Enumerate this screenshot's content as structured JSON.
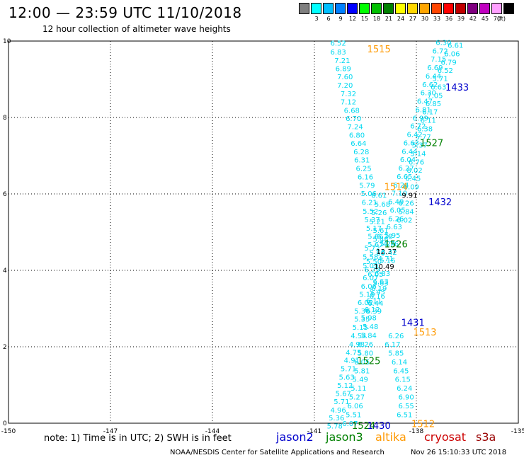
{
  "header": {
    "title": "12:00 — 23:59 UTC 11/10/2018",
    "subtitle": "12 hour collection of altimeter wave heights"
  },
  "scale": {
    "unit": "(ft)",
    "items": [
      {
        "label": "",
        "color": "#7f7f7f"
      },
      {
        "label": "3",
        "color": "#00ffff"
      },
      {
        "label": "6",
        "color": "#00bfff"
      },
      {
        "label": "9",
        "color": "#0080ff"
      },
      {
        "label": "12",
        "color": "#0000ff"
      },
      {
        "label": "15",
        "color": "#00ff00"
      },
      {
        "label": "18",
        "color": "#00c000"
      },
      {
        "label": "21",
        "color": "#008000"
      },
      {
        "label": "24",
        "color": "#ffff00"
      },
      {
        "label": "27",
        "color": "#ffd700"
      },
      {
        "label": "30",
        "color": "#ffa500"
      },
      {
        "label": "33",
        "color": "#ff4500"
      },
      {
        "label": "36",
        "color": "#ff0000"
      },
      {
        "label": "39",
        "color": "#c00000"
      },
      {
        "label": "42",
        "color": "#800080"
      },
      {
        "label": "45",
        "color": "#c000c0"
      },
      {
        "label": "70",
        "color": "#ffa0ff"
      },
      {
        "label": "",
        "color": "#000000"
      }
    ]
  },
  "chart_data": {
    "type": "scatter",
    "xlim": [
      -150,
      -135
    ],
    "ylim": [
      0,
      10
    ],
    "x_ticks": [
      "-150",
      "-147",
      "-144",
      "-141",
      "-138",
      "-135"
    ],
    "y_ticks": [
      "0",
      "2",
      "4",
      "6",
      "8",
      "10"
    ],
    "grid": true,
    "value_color": "#00d8f0",
    "track_label_colors": {
      "jason2": "#0000cc",
      "jason3": "#008000",
      "altika": "#ff9900"
    },
    "tracks": [
      {
        "points": [
          {
            "x": -140.3,
            "y": 9.88,
            "v": "6.52"
          },
          {
            "x": -140.3,
            "y": 9.65,
            "v": "6.83"
          },
          {
            "x": -140.18,
            "y": 9.43,
            "v": "7.21"
          },
          {
            "x": -140.15,
            "y": 9.21,
            "v": "6.89"
          },
          {
            "x": -140.1,
            "y": 9.0,
            "v": "7.60"
          },
          {
            "x": -140.1,
            "y": 8.78,
            "v": "7.20"
          },
          {
            "x": -140.0,
            "y": 8.56,
            "v": "7.32"
          },
          {
            "x": -140.0,
            "y": 8.34,
            "v": "7.12"
          },
          {
            "x": -139.9,
            "y": 8.12,
            "v": "6.68"
          },
          {
            "x": -139.85,
            "y": 7.91,
            "v": "6.70"
          },
          {
            "x": -139.8,
            "y": 7.69,
            "v": "7.24"
          },
          {
            "x": -139.75,
            "y": 7.47,
            "v": "6.80"
          },
          {
            "x": -139.7,
            "y": 7.26,
            "v": "6.64"
          },
          {
            "x": -139.62,
            "y": 7.04,
            "v": "6.28"
          },
          {
            "x": -139.6,
            "y": 6.82,
            "v": "6.31"
          },
          {
            "x": -139.55,
            "y": 6.6,
            "v": "6.25"
          },
          {
            "x": -139.5,
            "y": 6.38,
            "v": "6.16"
          },
          {
            "x": -139.45,
            "y": 6.16,
            "v": "5.79"
          },
          {
            "x": -139.4,
            "y": 5.94,
            "v": "5.06"
          },
          {
            "x": -139.38,
            "y": 5.71,
            "v": "6.21"
          },
          {
            "x": -139.35,
            "y": 5.48,
            "v": "5.52"
          },
          {
            "x": -139.3,
            "y": 5.26,
            "v": "5.37"
          },
          {
            "x": -139.25,
            "y": 5.04,
            "v": "5.17"
          },
          {
            "x": -139.2,
            "y": 4.82,
            "v": "5.66"
          },
          {
            "x": -139.2,
            "y": 4.61,
            "v": "5.67"
          },
          {
            "x": -139.15,
            "y": 4.39,
            "v": "5.60"
          },
          {
            "x": -139.25,
            "y": 4.17,
            "v": "5.50"
          },
          {
            "x": -139.3,
            "y": 3.95,
            "v": "6.29"
          },
          {
            "x": -139.35,
            "y": 3.74,
            "v": "6.07"
          },
          {
            "x": -139.4,
            "y": 3.52,
            "v": "6.06"
          },
          {
            "x": -139.45,
            "y": 3.31,
            "v": "5.19"
          },
          {
            "x": -139.5,
            "y": 3.09,
            "v": "6.02"
          },
          {
            "x": -139.6,
            "y": 2.87,
            "v": "5.30"
          },
          {
            "x": -139.6,
            "y": 2.66,
            "v": "5.35"
          },
          {
            "x": -139.65,
            "y": 2.44,
            "v": "5.15"
          },
          {
            "x": -139.7,
            "y": 2.22,
            "v": "4.54"
          },
          {
            "x": -139.75,
            "y": 2.0,
            "v": "4.98"
          },
          {
            "x": -139.85,
            "y": 1.79,
            "v": "4.75"
          },
          {
            "x": -139.9,
            "y": 1.58,
            "v": "4.91"
          },
          {
            "x": -140.0,
            "y": 1.36,
            "v": "5.71"
          },
          {
            "x": -140.05,
            "y": 1.14,
            "v": "5.63"
          },
          {
            "x": -140.1,
            "y": 0.93,
            "v": "5.12"
          },
          {
            "x": -140.15,
            "y": 0.71,
            "v": "5.67"
          },
          {
            "x": -140.2,
            "y": 0.5,
            "v": "5.71"
          },
          {
            "x": -140.3,
            "y": 0.28,
            "v": "4.96"
          },
          {
            "x": -140.35,
            "y": 0.07,
            "v": "5.36"
          },
          {
            "x": -140.4,
            "y": -0.14,
            "v": "5.78"
          }
        ],
        "labels": [
          {
            "x": -139.1,
            "y": 9.7,
            "text": "1515",
            "sat": "altika"
          },
          {
            "x": -138.6,
            "y": 6.1,
            "text": "1514",
            "sat": "altika"
          },
          {
            "x": -139.55,
            "y": -0.15,
            "text": "1524",
            "sat": "jason3"
          }
        ]
      },
      {
        "points": [
          {
            "x": -139.1,
            "y": 5.9,
            "v": "6.61"
          },
          {
            "x": -139.0,
            "y": 5.67,
            "v": "5.68"
          },
          {
            "x": -139.1,
            "y": 5.44,
            "v": "5.26"
          },
          {
            "x": -139.15,
            "y": 5.21,
            "v": "5.21"
          },
          {
            "x": -139.05,
            "y": 4.98,
            "v": "5.61"
          },
          {
            "x": -139.05,
            "y": 4.75,
            "v": "5.48"
          },
          {
            "x": -139.3,
            "y": 4.52,
            "v": "5.72"
          },
          {
            "x": -139.35,
            "y": 4.29,
            "v": "5.58"
          },
          {
            "x": -139.35,
            "y": 4.06,
            "v": "5.09"
          },
          {
            "x": -139.2,
            "y": 3.83,
            "v": "6.05"
          },
          {
            "x": -139.05,
            "y": 3.6,
            "v": "5.63"
          },
          {
            "x": -139.15,
            "y": 3.37,
            "v": "5.45"
          },
          {
            "x": -139.25,
            "y": 3.14,
            "v": "6.11"
          },
          {
            "x": -139.3,
            "y": 2.91,
            "v": "6.12"
          },
          {
            "x": -139.4,
            "y": 2.69,
            "v": "5.98"
          },
          {
            "x": -139.35,
            "y": 2.46,
            "v": "5.48"
          },
          {
            "x": -139.4,
            "y": 2.23,
            "v": "5.84"
          },
          {
            "x": -139.5,
            "y": 2.0,
            "v": "6.26"
          },
          {
            "x": -139.5,
            "y": 1.77,
            "v": "5.80"
          },
          {
            "x": -139.6,
            "y": 1.54,
            "v": "6.05"
          },
          {
            "x": -139.6,
            "y": 1.31,
            "v": "5.81"
          },
          {
            "x": -139.65,
            "y": 1.08,
            "v": "5.49"
          },
          {
            "x": -139.7,
            "y": 0.85,
            "v": "5.11"
          },
          {
            "x": -139.75,
            "y": 0.62,
            "v": "5.27"
          },
          {
            "x": -139.8,
            "y": 0.39,
            "v": "6.06"
          },
          {
            "x": -139.85,
            "y": 0.16,
            "v": "5.51"
          },
          {
            "x": -139.95,
            "y": -0.07,
            "v": "6.07"
          }
        ],
        "labels": [
          {
            "x": -138.6,
            "y": 4.6,
            "text": "1526",
            "sat": "jason3"
          },
          {
            "x": -139.4,
            "y": 1.55,
            "text": "1525",
            "sat": "jason3"
          }
        ]
      },
      {
        "points": [
          {
            "x": -138.93,
            "y": 4.82,
            "v": "6.28"
          },
          {
            "x": -138.85,
            "y": 4.63,
            "v": "5.24"
          },
          {
            "x": -138.88,
            "y": 4.43,
            "v": "12.37"
          },
          {
            "x": -138.9,
            "y": 4.24,
            "v": "4.71"
          },
          {
            "x": -138.95,
            "y": 4.04,
            "v": "10.49"
          },
          {
            "x": -139.0,
            "y": 3.85,
            "v": "6.83"
          },
          {
            "x": -139.05,
            "y": 3.65,
            "v": "6.63"
          },
          {
            "x": -139.1,
            "y": 3.46,
            "v": "6.19"
          },
          {
            "x": -139.15,
            "y": 3.26,
            "v": "6.16"
          },
          {
            "x": -139.2,
            "y": 3.07,
            "v": "6.44"
          },
          {
            "x": -139.25,
            "y": 2.87,
            "v": "6.39"
          }
        ],
        "labels": [
          {
            "x": -138.1,
            "y": 2.55,
            "text": "1431",
            "sat": "jason2"
          },
          {
            "x": -137.75,
            "y": 2.3,
            "text": "1513",
            "sat": "altika"
          }
        ]
      },
      {
        "points": [
          {
            "x": -137.2,
            "y": 9.9,
            "v": "6.30"
          },
          {
            "x": -137.3,
            "y": 9.68,
            "v": "6.72"
          },
          {
            "x": -137.35,
            "y": 9.46,
            "v": "7.15"
          },
          {
            "x": -137.45,
            "y": 9.24,
            "v": "6.69"
          },
          {
            "x": -137.5,
            "y": 9.02,
            "v": "6.44"
          },
          {
            "x": -137.6,
            "y": 8.8,
            "v": "6.62"
          },
          {
            "x": -137.65,
            "y": 8.58,
            "v": "6.30"
          },
          {
            "x": -137.75,
            "y": 8.36,
            "v": "6.47"
          },
          {
            "x": -137.8,
            "y": 8.14,
            "v": "6.81"
          },
          {
            "x": -137.88,
            "y": 7.92,
            "v": "6.99"
          },
          {
            "x": -137.95,
            "y": 7.71,
            "v": "6.72"
          },
          {
            "x": -138.05,
            "y": 7.49,
            "v": "6.42"
          },
          {
            "x": -138.15,
            "y": 7.27,
            "v": "6.63"
          },
          {
            "x": -138.2,
            "y": 7.05,
            "v": "6.44"
          },
          {
            "x": -138.25,
            "y": 6.83,
            "v": "6.04"
          },
          {
            "x": -138.3,
            "y": 6.61,
            "v": "6.27"
          },
          {
            "x": -138.35,
            "y": 6.39,
            "v": "6.65"
          },
          {
            "x": -138.45,
            "y": 6.17,
            "v": "6.24"
          },
          {
            "x": -138.5,
            "y": 5.95,
            "v": "7.10"
          },
          {
            "x": -138.6,
            "y": 5.73,
            "v": "6.49"
          },
          {
            "x": -138.55,
            "y": 5.51,
            "v": "6.05"
          },
          {
            "x": -138.6,
            "y": 5.29,
            "v": "6.26"
          },
          {
            "x": -138.65,
            "y": 5.07,
            "v": "6.63"
          },
          {
            "x": -138.7,
            "y": 4.85,
            "v": "5.95"
          },
          {
            "x": -138.75,
            "y": 4.63,
            "v": "4.76"
          },
          {
            "x": -138.8,
            "y": 4.41,
            "v": "5.42"
          },
          {
            "x": -138.85,
            "y": 4.19,
            "v": "5.16"
          }
        ],
        "labels": [
          {
            "x": -136.8,
            "y": 8.7,
            "text": "1433",
            "sat": "jason2"
          },
          {
            "x": -137.55,
            "y": 7.25,
            "text": "1527",
            "sat": "jason3"
          },
          {
            "x": -137.3,
            "y": 5.7,
            "text": "1432",
            "sat": "jason2"
          }
        ]
      },
      {
        "points": [
          {
            "x": -136.85,
            "y": 9.82,
            "v": "6.61"
          },
          {
            "x": -136.95,
            "y": 9.6,
            "v": "6.06"
          },
          {
            "x": -137.05,
            "y": 9.38,
            "v": "6.79"
          },
          {
            "x": -137.15,
            "y": 9.17,
            "v": "6.52"
          },
          {
            "x": -137.3,
            "y": 8.95,
            "v": "5.71"
          },
          {
            "x": -137.35,
            "y": 8.73,
            "v": "6.63"
          },
          {
            "x": -137.45,
            "y": 8.51,
            "v": "7.05"
          },
          {
            "x": -137.5,
            "y": 8.3,
            "v": "6.85"
          },
          {
            "x": -137.6,
            "y": 8.08,
            "v": "6.17"
          },
          {
            "x": -137.65,
            "y": 7.86,
            "v": "6.11"
          },
          {
            "x": -137.75,
            "y": 7.64,
            "v": "6.38"
          },
          {
            "x": -137.8,
            "y": 7.43,
            "v": "5.77"
          },
          {
            "x": -137.9,
            "y": 7.21,
            "v": "5.37"
          },
          {
            "x": -137.95,
            "y": 6.99,
            "v": "5.14"
          },
          {
            "x": -138.0,
            "y": 6.77,
            "v": "6.76"
          },
          {
            "x": -138.05,
            "y": 6.56,
            "v": "8.02"
          },
          {
            "x": -138.1,
            "y": 6.34,
            "v": "6.45"
          },
          {
            "x": -138.15,
            "y": 6.12,
            "v": "6.09"
          },
          {
            "x": -138.2,
            "y": 5.9,
            "v": "9.91"
          },
          {
            "x": -138.3,
            "y": 5.69,
            "v": "6.26"
          },
          {
            "x": -138.3,
            "y": 5.47,
            "v": "5.84"
          },
          {
            "x": -138.35,
            "y": 5.25,
            "v": "6.02"
          }
        ],
        "labels": []
      },
      {
        "points": [
          {
            "x": -138.6,
            "y": 2.22,
            "v": "6.26"
          },
          {
            "x": -138.7,
            "y": 2.0,
            "v": "6.17"
          },
          {
            "x": -138.6,
            "y": 1.77,
            "v": "5.85"
          },
          {
            "x": -138.5,
            "y": 1.54,
            "v": "6.14"
          },
          {
            "x": -138.45,
            "y": 1.31,
            "v": "6.45"
          },
          {
            "x": -138.4,
            "y": 1.08,
            "v": "6.15"
          },
          {
            "x": -138.35,
            "y": 0.85,
            "v": "6.24"
          },
          {
            "x": -138.3,
            "y": 0.62,
            "v": "6.90"
          },
          {
            "x": -138.3,
            "y": 0.39,
            "v": "6.55"
          },
          {
            "x": -138.35,
            "y": 0.16,
            "v": "6.51"
          }
        ],
        "labels": [
          {
            "x": -137.8,
            "y": -0.1,
            "text": "1512",
            "sat": "altika"
          },
          {
            "x": -139.1,
            "y": -0.15,
            "text": "1430",
            "sat": "jason2"
          }
        ]
      }
    ]
  },
  "legend": {
    "note": "note: 1) Time is in UTC; 2) SWH is in feet",
    "satellites": [
      {
        "name": "jason2",
        "color": "#0000cc"
      },
      {
        "name": "jason3",
        "color": "#008000"
      },
      {
        "name": "altika",
        "color": "#ff9900"
      },
      {
        "name": "cryosat",
        "color": "#cc0000"
      },
      {
        "name": "s3a",
        "color": "#990000"
      }
    ]
  },
  "footer": {
    "credit": "NOAA/NESDIS Center for Satellite Applications and Research",
    "timestamp": "Nov 26 15:10:33 UTC 2018"
  }
}
